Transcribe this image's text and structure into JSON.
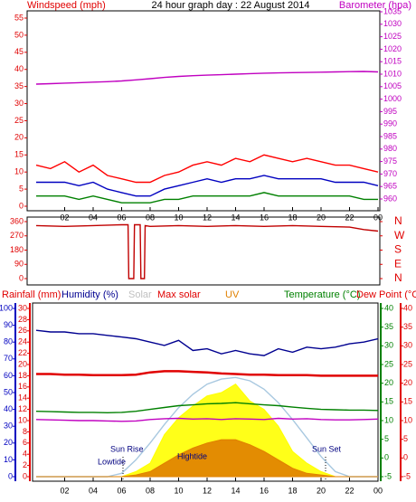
{
  "chart_data": [
    {
      "type": "line",
      "title": "24 hour graph day : 22 August 2014",
      "ylabel": "Windspeed (mph)",
      "y2label": "Barometer (hpa)",
      "x": [
        0,
        1,
        2,
        3,
        4,
        5,
        6,
        7,
        8,
        9,
        10,
        11,
        12,
        13,
        14,
        15,
        16,
        17,
        18,
        19,
        20,
        21,
        22,
        23,
        24
      ],
      "xlim": [
        0,
        24
      ],
      "xticks": [
        {
          "value": 2,
          "label": "02"
        },
        {
          "value": 4,
          "label": "04"
        },
        {
          "value": 6,
          "label": "06"
        },
        {
          "value": 8,
          "label": "08"
        },
        {
          "value": 10,
          "label": "10"
        },
        12,
        14,
        16,
        18,
        20,
        22,
        {
          "value": 24,
          "label": "00"
        }
      ],
      "ylim": [
        0,
        55
      ],
      "yticks": [
        0,
        5,
        10,
        15,
        20,
        25,
        30,
        35,
        40,
        45,
        50,
        55
      ],
      "y2lim": [
        960,
        1035
      ],
      "y2ticks": [
        960,
        965,
        970,
        975,
        980,
        985,
        990,
        995,
        1000,
        1005,
        1010,
        1015,
        1020,
        1025,
        1030,
        1035
      ],
      "series": [
        {
          "color": "#ff0000",
          "values": [
            12,
            11,
            13,
            10,
            12,
            9,
            8,
            7,
            7,
            9,
            10,
            12,
            13,
            12,
            14,
            13,
            15,
            14,
            13,
            14,
            13,
            12,
            12,
            11,
            10
          ]
        },
        {
          "color": "#0000c0",
          "values": [
            7,
            7,
            7,
            6,
            7,
            5,
            4,
            3,
            3,
            5,
            6,
            7,
            8,
            7,
            8,
            8,
            9,
            8,
            8,
            8,
            8,
            7,
            7,
            7,
            6
          ]
        },
        {
          "color": "#008000",
          "values": [
            3,
            3,
            3,
            2,
            3,
            2,
            1,
            1,
            1,
            2,
            2,
            3,
            3,
            3,
            3,
            3,
            4,
            3,
            3,
            3,
            3,
            3,
            3,
            2,
            2
          ]
        },
        {
          "color": "#c000c0",
          "axis": "y2",
          "values": [
            1006,
            1006.2,
            1006.4,
            1006.6,
            1006.8,
            1007,
            1007.3,
            1007.7,
            1008.2,
            1008.7,
            1009.1,
            1009.4,
            1009.6,
            1009.8,
            1010,
            1010.2,
            1010.4,
            1010.5,
            1010.6,
            1010.7,
            1010.8,
            1010.9,
            1011,
            1011.1,
            1010.9
          ]
        }
      ]
    },
    {
      "type": "line",
      "x": [
        0,
        2,
        4,
        6,
        6.45,
        6.5,
        6.85,
        6.9,
        7.3,
        7.35,
        7.6,
        7.65,
        8,
        10,
        12,
        14,
        16,
        18,
        20,
        22,
        23,
        24
      ],
      "xlim": [
        0,
        24
      ],
      "ylim": [
        0,
        360
      ],
      "yticks": [
        0,
        90,
        180,
        270,
        360
      ],
      "y2lim": [
        0,
        360
      ],
      "y2ticks": [
        {
          "value": 360,
          "label": "N"
        },
        {
          "value": 270,
          "label": "W"
        },
        {
          "value": 180,
          "label": "S"
        },
        {
          "value": 90,
          "label": "E"
        },
        {
          "value": 0,
          "label": "N"
        }
      ],
      "series": [
        {
          "color": "#c00000",
          "values": [
            335,
            330,
            335,
            340,
            340,
            0,
            0,
            340,
            340,
            0,
            0,
            335,
            330,
            335,
            330,
            335,
            330,
            335,
            330,
            325,
            310,
            300
          ]
        }
      ]
    },
    {
      "type": "line",
      "x": [
        0,
        1,
        2,
        3,
        4,
        5,
        6,
        7,
        8,
        9,
        10,
        11,
        12,
        13,
        14,
        15,
        16,
        17,
        18,
        19,
        20,
        21,
        22,
        23,
        24
      ],
      "xlim": [
        0,
        24
      ],
      "xticks": [
        {
          "value": 2,
          "label": "02"
        },
        {
          "value": 4,
          "label": "04"
        },
        {
          "value": 6,
          "label": "06"
        },
        {
          "value": 8,
          "label": "08"
        },
        {
          "value": 10,
          "label": "10"
        },
        12,
        14,
        16,
        18,
        20,
        22,
        {
          "value": 24,
          "label": "00"
        }
      ],
      "ylim": [
        0,
        100
      ],
      "yticks": [
        0,
        10,
        20,
        30,
        40,
        50,
        60,
        70,
        80,
        90,
        100
      ],
      "y2lim": [
        0,
        30
      ],
      "y2ticks": [
        0,
        2,
        4,
        6,
        8,
        10,
        12,
        14,
        16,
        18,
        20,
        22,
        24,
        26,
        28,
        30
      ],
      "y3lim": [
        -5,
        40
      ],
      "y3ticks": [
        -5,
        0,
        5,
        10,
        15,
        20,
        25,
        30,
        35,
        40
      ],
      "y4lim": [
        -5,
        40
      ],
      "y4ticks": [
        -5,
        0,
        5,
        10,
        15,
        20,
        25,
        30,
        35,
        40
      ],
      "annotations": [
        "Sun Rise",
        "Sun Set",
        "Lowtide",
        "Hightide"
      ],
      "series": [
        {
          "name": "Solar",
          "color": "#ffff00",
          "area": true,
          "values": [
            0,
            0,
            0,
            0,
            0,
            0,
            0,
            3,
            8,
            25,
            35,
            42,
            48,
            50,
            55,
            45,
            40,
            30,
            15,
            8,
            3,
            0,
            0,
            0,
            0
          ]
        },
        {
          "name": "Max solar",
          "color": "#a8c8e0",
          "values": [
            0,
            0,
            0,
            0,
            0,
            0,
            2,
            10,
            20,
            31,
            41,
            49,
            55,
            58,
            59,
            57,
            52,
            44,
            34,
            23,
            12,
            3,
            0,
            0,
            0
          ]
        },
        {
          "name": "UV",
          "color": "#e08000",
          "area": true,
          "values": [
            0,
            0,
            0,
            0,
            0,
            0,
            0,
            1,
            3,
            8,
            13,
            17,
            20,
            22,
            22,
            19,
            15,
            10,
            5,
            2,
            1,
            0,
            0,
            0,
            0
          ]
        },
        {
          "name": "Rainfall (mm)",
          "color": "#e00000",
          "axis": "y2",
          "values": [
            18.3,
            18.3,
            18.2,
            18.2,
            18.1,
            18.1,
            18.1,
            18.2,
            18.6,
            18.8,
            18.8,
            18.7,
            18.6,
            18.4,
            18.3,
            18.2,
            18.2,
            18.1,
            18.1,
            18.1,
            18,
            18,
            18,
            18,
            18
          ]
        },
        {
          "name": "Humidity (%)",
          "color": "#000090",
          "values": [
            87,
            86,
            86,
            85,
            85,
            84,
            83,
            82,
            80,
            78,
            81,
            75,
            76,
            73,
            75,
            73,
            72,
            76,
            74,
            77,
            76,
            77,
            79,
            80,
            82
          ]
        },
        {
          "name": "Temperature (°C)",
          "color": "#008000",
          "axis": "y3",
          "values": [
            12.5,
            12.4,
            12.3,
            12.2,
            12.2,
            12.1,
            12.2,
            12.5,
            13,
            13.5,
            14,
            14.2,
            14.5,
            14.6,
            14.8,
            14.5,
            14.2,
            14,
            13.6,
            13.3,
            13,
            12.9,
            12.8,
            12.8,
            12.7
          ]
        },
        {
          "name": "Dew Point (°C)",
          "color": "#c000c0",
          "axis": "y4",
          "values": [
            10.3,
            10.2,
            10.1,
            10,
            10,
            9.9,
            9.8,
            9.9,
            10.3,
            10.5,
            10.6,
            10.4,
            10.5,
            10.3,
            10.5,
            10.4,
            10.3,
            10.6,
            10.4,
            10.5,
            10.3,
            10.2,
            10.2,
            10.3,
            10.4
          ]
        }
      ]
    }
  ]
}
